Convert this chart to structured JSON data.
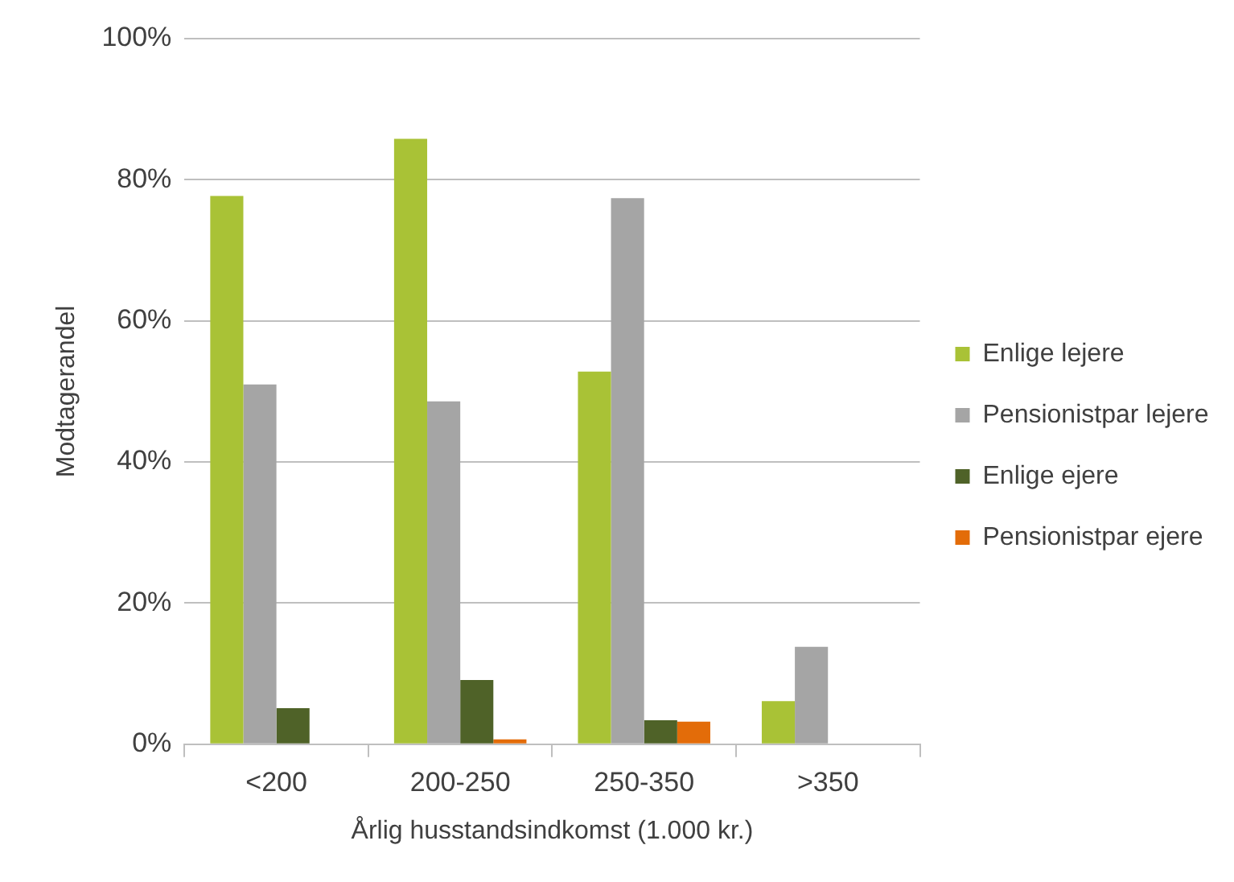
{
  "chart_data": {
    "type": "bar",
    "xlabel": "Årlig husstandsindkomst (1.000 kr.)",
    "ylabel": "Modtagerandel",
    "categories": [
      "<200",
      "200-250",
      "250-350",
      ">350"
    ],
    "series": [
      {
        "name": "Enlige lejere",
        "color": "#a9c236",
        "values": [
          77.7,
          85.8,
          52.8,
          6.1
        ]
      },
      {
        "name": "Pensionistpar lejere",
        "color": "#a5a5a5",
        "values": [
          51.0,
          48.6,
          77.4,
          13.8
        ]
      },
      {
        "name": "Enlige ejere",
        "color": "#4f6228",
        "values": [
          5.1,
          9.1,
          3.4,
          null
        ]
      },
      {
        "name": "Pensionistpar ejere",
        "color": "#e36c09",
        "values": [
          null,
          0.7,
          3.2,
          null
        ]
      }
    ],
    "ylim": [
      0,
      100
    ],
    "yticks": [
      {
        "value": 0,
        "label": "0%"
      },
      {
        "value": 20,
        "label": "20%"
      },
      {
        "value": 40,
        "label": "40%"
      },
      {
        "value": 60,
        "label": "60%"
      },
      {
        "value": 80,
        "label": "80%"
      },
      {
        "value": 100,
        "label": "100%"
      }
    ],
    "grid": "y",
    "legend": "right"
  }
}
